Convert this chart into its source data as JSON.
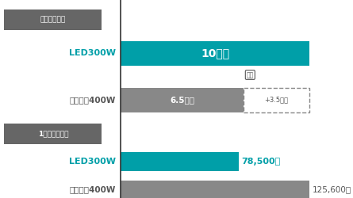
{
  "section1_label": "連続運転時間",
  "section2_label": "1年間の燃料費",
  "row1_label": "LED300W",
  "row2_label": "メタハラ400W",
  "row3_label": "LED300W",
  "row4_label": "メタハラ400W",
  "bar1_value": 10,
  "bar1_text": "10時間",
  "bar2_solid_value": 6.5,
  "bar2_solid_text": "6.5時間",
  "bar2_dashed_value": 3.5,
  "bar2_dashed_text": "+3.5時間",
  "bar3_value": 78500,
  "bar3_text": "78,500円",
  "bar4_value": 125600,
  "bar4_text": "125,600円",
  "teal_color": "#009FA8",
  "gray_color": "#888888",
  "dark_gray": "#555555",
  "section_bg": "#666666",
  "section_text": "#ffffff",
  "bg_color": "#ffffff",
  "max_time": 10,
  "max_cost": 125600
}
